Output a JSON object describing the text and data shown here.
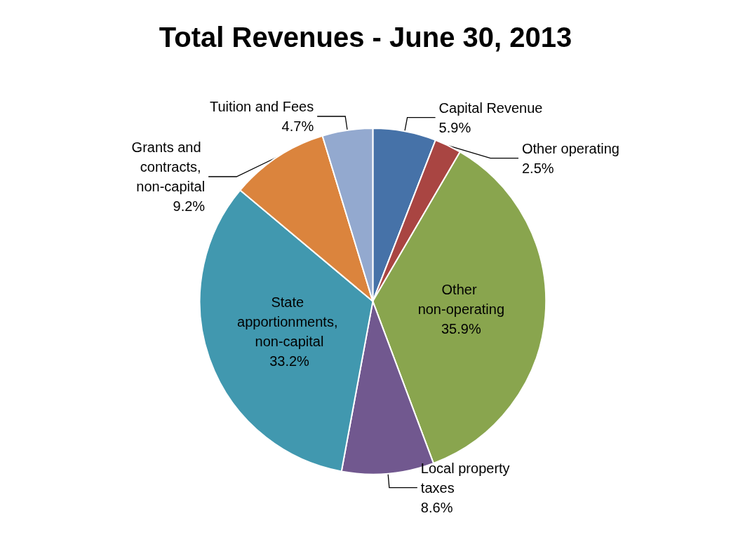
{
  "chart_data": {
    "type": "pie",
    "title": "Total Revenues - June 30, 2013",
    "categories": [
      "Capital Revenue",
      "Other operating",
      "Other non-operating",
      "Local property taxes",
      "State apportionments, non-capital",
      "Grants and contracts, non-capital",
      "Tuition and Fees"
    ],
    "values": [
      5.9,
      2.5,
      35.9,
      8.6,
      33.2,
      9.2,
      4.7
    ],
    "value_labels": [
      "5.9%",
      "2.5%",
      "35.9%",
      "8.6%",
      "33.2%",
      "9.2%",
      "4.7%"
    ],
    "colors": [
      "#4672a8",
      "#a94542",
      "#89a54e",
      "#71588f",
      "#4198af",
      "#db843d",
      "#93a9cf"
    ],
    "legend": false
  }
}
